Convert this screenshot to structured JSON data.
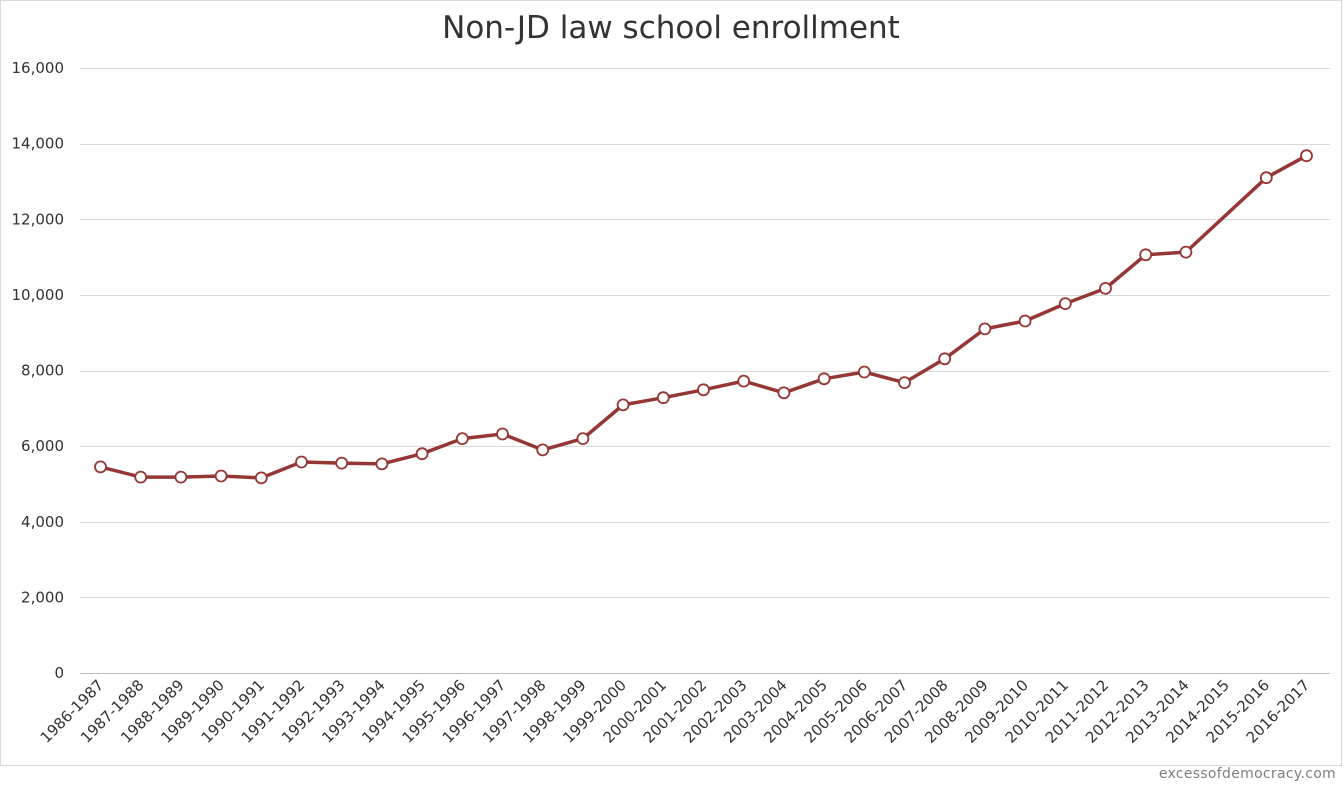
{
  "chart_data": {
    "type": "line",
    "title": "Non-JD law school enrollment",
    "xlabel": "",
    "ylabel": "",
    "categories": [
      "1986-1987",
      "1987-1988",
      "1988-1989",
      "1989-1990",
      "1990-1991",
      "1991-1992",
      "1992-1993",
      "1993-1994",
      "1994-1995",
      "1995-1996",
      "1996-1997",
      "1997-1998",
      "1998-1999",
      "1999-2000",
      "2000-2001",
      "2001-2002",
      "2002-2003",
      "2003-2004",
      "2004-2005",
      "2005-2006",
      "2006-2007",
      "2007-2008",
      "2008-2009",
      "2009-2010",
      "2010-2011",
      "2011-2012",
      "2012-2013",
      "2013-2014",
      "2014-2015",
      "2015-2016",
      "2016-2017"
    ],
    "series": [
      {
        "values": [
          5450,
          5180,
          5180,
          5210,
          5160,
          5580,
          5550,
          5530,
          5800,
          6200,
          6320,
          5900,
          6200,
          7090,
          7280,
          7490,
          7720,
          7410,
          7780,
          7960,
          7680,
          8310,
          9100,
          9310,
          9770,
          10170,
          11060,
          11130,
          null,
          13100,
          13680
        ],
        "color": "#953735"
      }
    ],
    "ylim": [
      0,
      16000
    ],
    "yticks": [
      0,
      2000,
      4000,
      6000,
      8000,
      10000,
      12000,
      14000,
      16000
    ],
    "ytick_labels": [
      "0",
      "2,000",
      "4,000",
      "6,000",
      "8,000",
      "10,000",
      "12,000",
      "14,000",
      "16,000"
    ],
    "grid": true,
    "legend": "none",
    "marker": "open-circle"
  },
  "footer": {
    "watermark": "excessofdemocracy.com"
  }
}
